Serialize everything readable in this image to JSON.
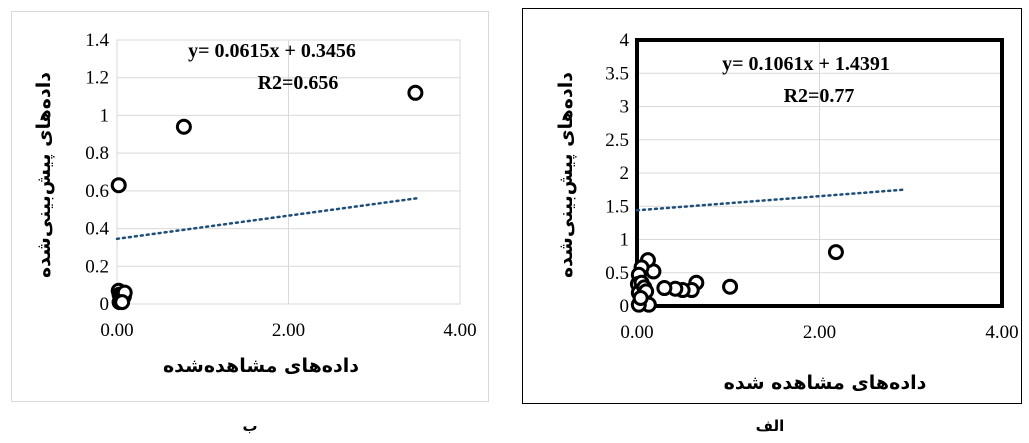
{
  "captions": {
    "left": "ب",
    "right": "الف"
  },
  "chart_data": [
    {
      "id": "b",
      "type": "scatter",
      "ylabel": "داده‌های پیش‌بینی‌شده",
      "xlabel": "داده‌های مشاهده‌شده",
      "equation": "y= 0.0615x + 0.3456",
      "r2": "R2=0.656",
      "xlim": [
        0,
        4
      ],
      "ylim": [
        0,
        1.4
      ],
      "x_ticks": [
        "0.00",
        "2.00",
        "4.00"
      ],
      "x_tick_values": [
        0,
        2,
        4
      ],
      "y_ticks": [
        "0",
        "0.2",
        "0.4",
        "0.6",
        "0.8",
        "1",
        "1.2",
        "1.4"
      ],
      "y_tick_values": [
        0,
        0.2,
        0.4,
        0.6,
        0.8,
        1,
        1.2,
        1.4
      ],
      "trendline": {
        "slope": 0.0615,
        "intercept": 0.3456,
        "x_range": [
          0,
          3.5
        ]
      },
      "trendline_color": "#1f4e79",
      "grid": true,
      "points": [
        {
          "x": 0.02,
          "y": 0.63
        },
        {
          "x": 0.78,
          "y": 0.94
        },
        {
          "x": 3.48,
          "y": 1.12
        },
        {
          "x": 0.02,
          "y": 0.07
        },
        {
          "x": 0.03,
          "y": 0.05
        },
        {
          "x": 0.05,
          "y": 0.04
        },
        {
          "x": 0.06,
          "y": 0.03
        },
        {
          "x": 0.04,
          "y": 0.02
        },
        {
          "x": 0.08,
          "y": 0.04
        },
        {
          "x": 0.09,
          "y": 0.06
        },
        {
          "x": 0.03,
          "y": 0.01
        },
        {
          "x": 0.06,
          "y": 0.01
        }
      ]
    },
    {
      "id": "a",
      "type": "scatter",
      "ylabel": "داده‌های پیش‌بینی‌شده",
      "xlabel": "داده‌های مشاهده شده",
      "equation": "y= 0.1061x + 1.4391",
      "r2": "R2=0.77",
      "xlim": [
        0,
        4
      ],
      "ylim": [
        0,
        4
      ],
      "x_ticks": [
        "0.00",
        "2.00",
        "4.00"
      ],
      "x_tick_values": [
        0,
        2,
        4
      ],
      "y_ticks": [
        "0",
        "0.5",
        "1",
        "1.5",
        "2",
        "2.5",
        "3",
        "3.5",
        "4"
      ],
      "y_tick_values": [
        0,
        0.5,
        1,
        1.5,
        2,
        2.5,
        3,
        3.5,
        4
      ],
      "trendline": {
        "slope": 0.1061,
        "intercept": 1.4391,
        "x_range": [
          0,
          2.95
        ]
      },
      "trendline_color": "#1f4e79",
      "grid": true,
      "points": [
        {
          "x": 2.18,
          "y": 0.81
        },
        {
          "x": 1.02,
          "y": 0.29
        },
        {
          "x": 0.65,
          "y": 0.35
        },
        {
          "x": 0.6,
          "y": 0.24
        },
        {
          "x": 0.5,
          "y": 0.24
        },
        {
          "x": 0.42,
          "y": 0.26
        },
        {
          "x": 0.3,
          "y": 0.27
        },
        {
          "x": 0.18,
          "y": 0.52
        },
        {
          "x": 0.12,
          "y": 0.69
        },
        {
          "x": 0.05,
          "y": 0.58
        },
        {
          "x": 0.02,
          "y": 0.47
        },
        {
          "x": 0.01,
          "y": 0.33
        },
        {
          "x": 0.02,
          "y": 0.2
        },
        {
          "x": 0.05,
          "y": 0.35
        },
        {
          "x": 0.08,
          "y": 0.28
        },
        {
          "x": 0.1,
          "y": 0.22
        },
        {
          "x": 0.13,
          "y": 0.02
        },
        {
          "x": 0.02,
          "y": 0.02
        },
        {
          "x": 0.04,
          "y": 0.12
        }
      ]
    }
  ]
}
